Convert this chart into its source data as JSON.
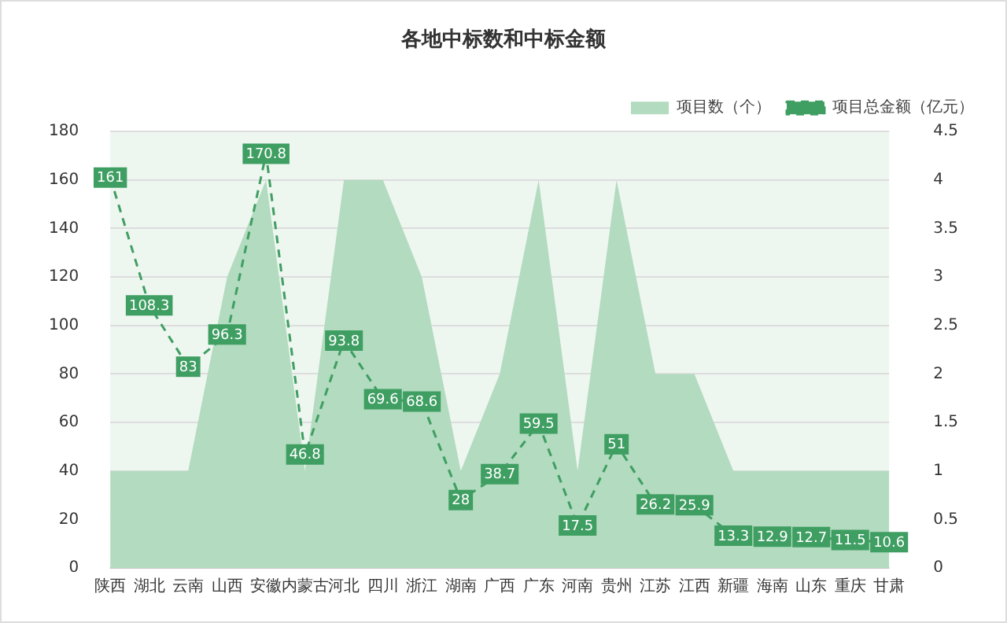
{
  "chart_data": {
    "type": "area",
    "title": "各地中标数和中标金额",
    "categories": [
      "陕西",
      "湖北",
      "云南",
      "山西",
      "安徽",
      "内蒙古",
      "河北",
      "四川",
      "浙江",
      "湖南",
      "广西",
      "广东",
      "河南",
      "贵州",
      "江苏",
      "江西",
      "新疆",
      "海南",
      "山东",
      "重庆",
      "甘肃"
    ],
    "series": [
      {
        "name": "项目数（个）",
        "color": "#b2dbbf",
        "values": [
          40,
          40,
          40,
          120,
          160,
          40,
          160,
          160,
          120,
          40,
          80,
          160,
          40,
          160,
          80,
          80,
          40,
          40,
          40,
          40,
          40
        ]
      },
      {
        "name": "项目总金额（亿元）",
        "type": "line",
        "color": "#3f9e62",
        "line_style": "dashed",
        "marker": "square",
        "values": [
          161,
          108.3,
          83,
          96.3,
          170.8,
          46.8,
          93.8,
          69.6,
          68.6,
          28,
          38.7,
          59.5,
          17.5,
          51,
          26.2,
          25.9,
          13.3,
          12.9,
          12.7,
          11.5,
          10.6
        ],
        "value_labels": [
          "161",
          "108.3",
          "83",
          "96.3",
          "170.8",
          "46.8",
          "93.8",
          "69.6",
          "68.6",
          "28",
          "38.7",
          "59.5",
          "17.5",
          "51",
          "26.2",
          "25.9",
          "13.3",
          "12.9",
          "12.7",
          "11.5",
          "10.6"
        ]
      }
    ],
    "ylim": [
      0,
      180
    ],
    "yticks": [
      0,
      20,
      40,
      60,
      80,
      100,
      120,
      140,
      160,
      180
    ],
    "y2lim": [
      0,
      4.5
    ],
    "y2ticks": [
      0,
      0.5,
      1,
      1.5,
      2,
      2.5,
      3,
      3.5,
      4,
      4.5
    ],
    "grid": "y",
    "legend": "top right"
  }
}
